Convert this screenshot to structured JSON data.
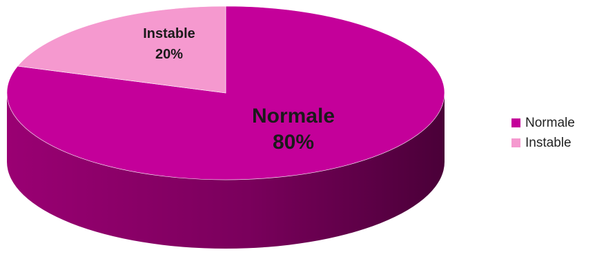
{
  "chart_data": {
    "type": "pie",
    "style": "3d",
    "title": "",
    "start_angle_deg": 0,
    "direction": "clockwise",
    "slices": [
      {
        "label": "Normale",
        "value": 80,
        "display": "80%",
        "color": "#C4009A",
        "side_color": "#8A0066"
      },
      {
        "label": "Instable",
        "value": 20,
        "display": "20%",
        "color": "#F599CF",
        "side_color": "#C56FA3"
      }
    ],
    "legend": {
      "position": "right",
      "entries": [
        "Normale",
        "Instable"
      ]
    }
  }
}
